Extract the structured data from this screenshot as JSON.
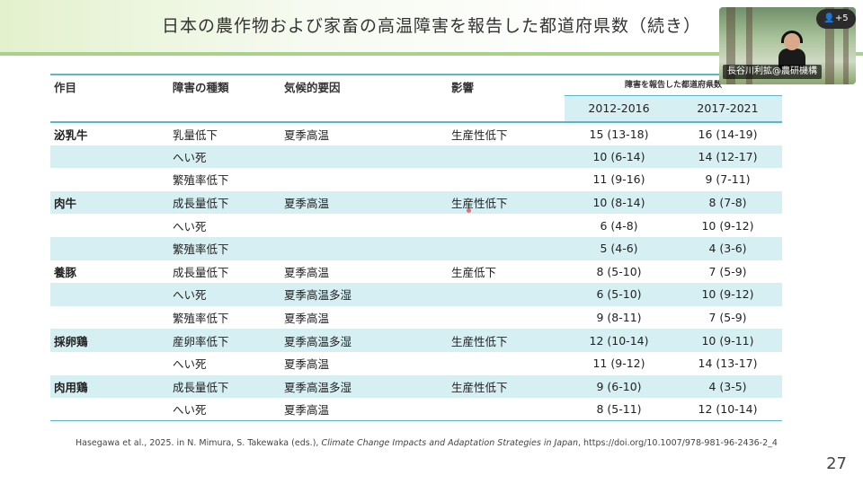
{
  "slide": {
    "title": "日本の農作物および家畜の高温障害を報告した都道府県数（続き）",
    "page_number": "27"
  },
  "table": {
    "headers": {
      "item": "作目",
      "damage_type": "障害の種類",
      "climatic_factor": "気候的要因",
      "impact": "影響",
      "count_header": "障害を報告した都道府県数",
      "period1": "2012-2016",
      "period2": "2017-2021"
    },
    "rows": [
      {
        "item": "泌乳牛",
        "damage": "乳量低下",
        "factor": "夏季高温",
        "impact": "生産性低下",
        "p1": "15 (13-18)",
        "p2": "16 (14-19)"
      },
      {
        "item": "",
        "damage": "へい死",
        "factor": "",
        "impact": "",
        "p1": "10 (6-14)",
        "p2": "14 (12-17)"
      },
      {
        "item": "",
        "damage": "繁殖率低下",
        "factor": "",
        "impact": "",
        "p1": "11 (9-16)",
        "p2": "9 (7-11)"
      },
      {
        "item": "肉牛",
        "damage": "成長量低下",
        "factor": "夏季高温",
        "impact": "生産性低下",
        "p1": "10 (8-14)",
        "p2": "8 (7-8)"
      },
      {
        "item": "",
        "damage": "へい死",
        "factor": "",
        "impact": "",
        "p1": "6 (4-8)",
        "p2": "10 (9-12)"
      },
      {
        "item": "",
        "damage": "繁殖率低下",
        "factor": "",
        "impact": "",
        "p1": "5 (4-6)",
        "p2": "4 (3-6)"
      },
      {
        "item": "養豚",
        "damage": "成長量低下",
        "factor": "夏季高温",
        "impact": "生産低下",
        "p1": "8 (5-10)",
        "p2": "7 (5-9)"
      },
      {
        "item": "",
        "damage": "へい死",
        "factor": "夏季高温多湿",
        "impact": "",
        "p1": "6 (5-10)",
        "p2": "10 (9-12)"
      },
      {
        "item": "",
        "damage": "繁殖率低下",
        "factor": "夏季高温",
        "impact": "",
        "p1": "9 (8-11)",
        "p2": "7 (5-9)"
      },
      {
        "item": "採卵鶏",
        "damage": "産卵率低下",
        "factor": "夏季高温多湿",
        "impact": "生産性低下",
        "p1": "12 (10-14)",
        "p2": "10 (9-11)"
      },
      {
        "item": "",
        "damage": "へい死",
        "factor": "夏季高温",
        "impact": "",
        "p1": "11 (9-12)",
        "p2": "14 (13-17)"
      },
      {
        "item": "肉用鶏",
        "damage": "成長量低下",
        "factor": "夏季高温多湿",
        "impact": "生産性低下",
        "p1": "9 (6-10)",
        "p2": "4 (3-5)"
      },
      {
        "item": "",
        "damage": "へい死",
        "factor": "夏季高温",
        "impact": "",
        "p1": "8 (5-11)",
        "p2": "12 (10-14)"
      }
    ]
  },
  "footer": {
    "citation_prefix": "Hasegawa et al., 2025. in N. Mimura, S. Takewaka (eds.), ",
    "citation_title": "Climate Change Impacts and Adaptation Strategies in Japan",
    "citation_suffix": ", https://doi.org/10.1007/978-981-96-2436-2_4"
  },
  "video_call": {
    "speaker_name": "長谷川利拡@農研機構",
    "participants_badge": "+5",
    "participants_icon": "person-icon"
  },
  "colors": {
    "accent": "#58b7c9",
    "row_shade": "#d6eff3",
    "title_band": "#e3f1cd"
  }
}
